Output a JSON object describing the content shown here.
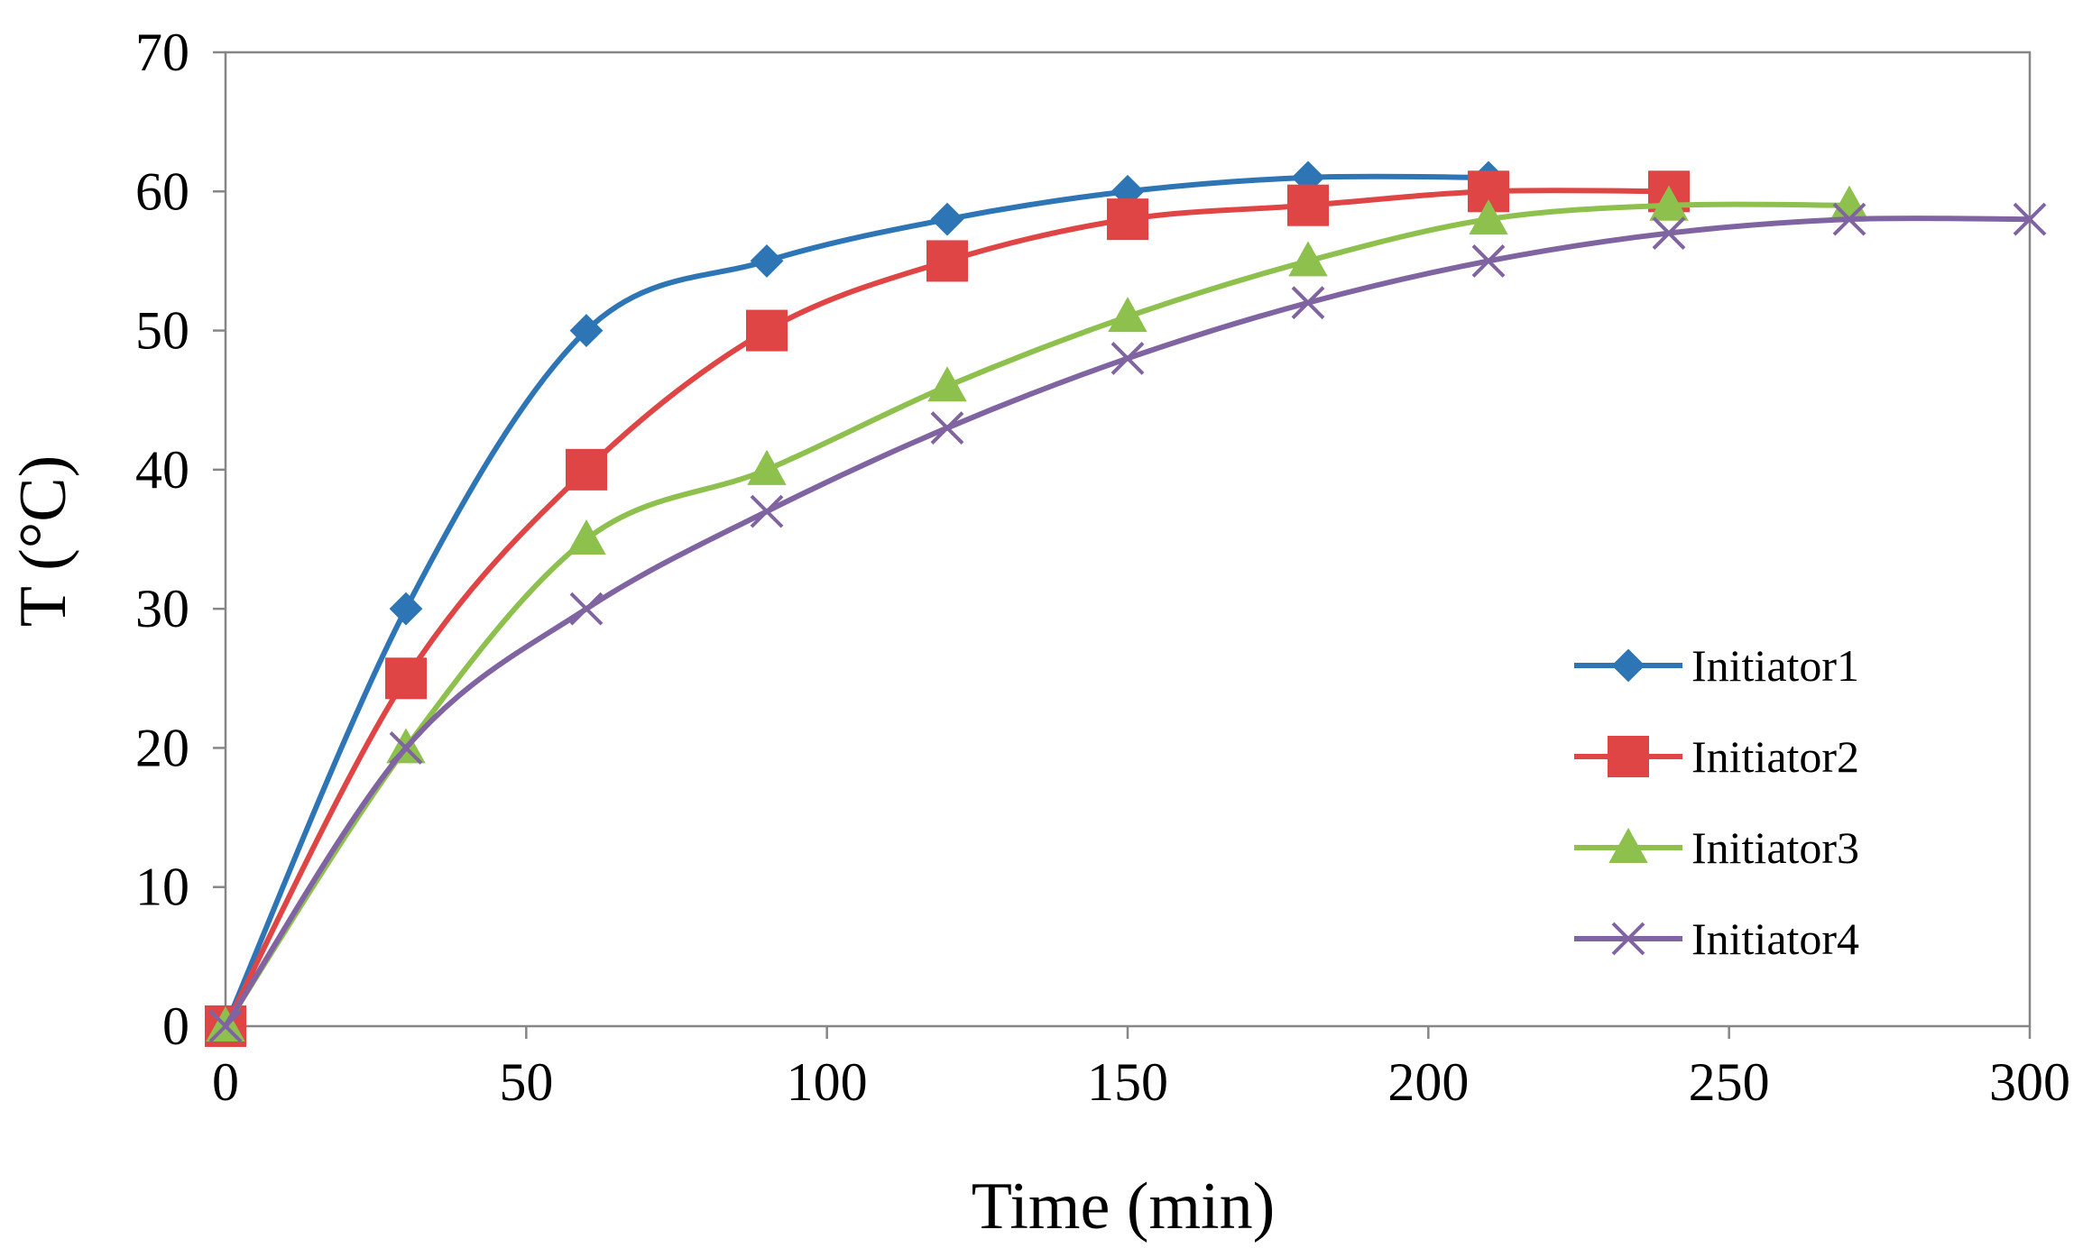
{
  "chart_data": {
    "type": "line",
    "title": "",
    "xlabel": "Time (min)",
    "ylabel": "T (°C)",
    "xlim": [
      0,
      300
    ],
    "ylim": [
      0,
      70
    ],
    "xticks": [
      0,
      50,
      100,
      150,
      200,
      250,
      300
    ],
    "yticks": [
      0,
      10,
      20,
      30,
      40,
      50,
      60,
      70
    ],
    "grid": false,
    "legend_position": "right",
    "series": [
      {
        "name": "Initiator1",
        "color": "#2e75b6",
        "marker": "diamond",
        "x": [
          0,
          30,
          60,
          90,
          120,
          150,
          180,
          210
        ],
        "values": [
          0,
          30,
          50,
          55,
          58,
          60,
          61,
          61
        ]
      },
      {
        "name": "Initiator2",
        "color": "#e04545",
        "marker": "square",
        "x": [
          0,
          30,
          60,
          90,
          120,
          150,
          180,
          210,
          240
        ],
        "values": [
          0,
          25,
          40,
          50,
          55,
          58,
          59,
          60,
          60
        ]
      },
      {
        "name": "Initiator3",
        "color": "#8ec04d",
        "marker": "triangle",
        "x": [
          0,
          30,
          60,
          90,
          120,
          150,
          180,
          210,
          240,
          270
        ],
        "values": [
          0,
          20,
          35,
          40,
          46,
          51,
          55,
          58,
          59,
          59
        ]
      },
      {
        "name": "Initiator4",
        "color": "#8064a2",
        "marker": "x",
        "x": [
          0,
          30,
          60,
          90,
          120,
          150,
          180,
          210,
          240,
          270,
          300
        ],
        "values": [
          0,
          20,
          30,
          37,
          43,
          48,
          52,
          55,
          57,
          58,
          58
        ]
      }
    ]
  }
}
